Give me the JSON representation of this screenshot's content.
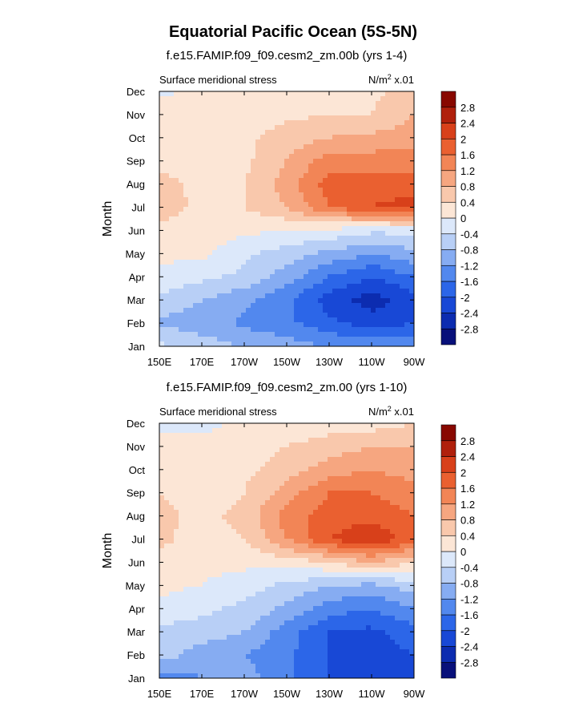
{
  "figure": {
    "title": "Equatorial Pacific Ocean (5S-5N)"
  },
  "colors": {
    "levels_palette": [
      "#08107a",
      "#0c2cb0",
      "#1848d6",
      "#2c66e8",
      "#5288ee",
      "#86acf2",
      "#b8cff6",
      "#dce8fa",
      "#fce6d6",
      "#f9c8ac",
      "#f6a680",
      "#f28556",
      "#ea6030",
      "#d8401a",
      "#b0200c",
      "#880800"
    ],
    "ocean_bg": "#fdefe4"
  },
  "chart_data": [
    {
      "type": "heatmap",
      "title": "f.e15.FAMIP.f09_f09.cesm2_zm.00b (yrs 1-4)",
      "subtitle_left": "Surface meridional stress",
      "units_prefix": "N/m",
      "units_sup": "2",
      "units_suffix": " x.01",
      "ylabel": "Month",
      "x": [
        "150E",
        "170E",
        "170W",
        "150W",
        "130W",
        "110W",
        "90W"
      ],
      "x_degrees_east": [
        150,
        170,
        190,
        210,
        230,
        250,
        270
      ],
      "y": [
        "Jan",
        "Feb",
        "Mar",
        "Apr",
        "May",
        "Jun",
        "Jul",
        "Aug",
        "Sep",
        "Oct",
        "Nov",
        "Dec"
      ],
      "values": [
        [
          -0.3,
          -0.6,
          -0.8,
          -1.0,
          -1.2,
          -1.3,
          -1.2
        ],
        [
          -0.9,
          -1.0,
          -1.3,
          -1.5,
          -1.9,
          -2.2,
          -2.0
        ],
        [
          -0.5,
          -0.8,
          -1.1,
          -1.5,
          -2.2,
          -2.6,
          -2.2
        ],
        [
          -0.1,
          -0.3,
          -0.5,
          -1.0,
          -1.6,
          -2.0,
          -1.6
        ],
        [
          0.1,
          0.1,
          -0.3,
          -0.6,
          -0.9,
          -1.2,
          -0.9
        ],
        [
          0.3,
          0.2,
          0.1,
          0.0,
          -0.1,
          -0.3,
          -0.3
        ],
        [
          0.6,
          0.3,
          0.4,
          0.8,
          1.6,
          2.0,
          2.2
        ],
        [
          0.5,
          0.3,
          0.4,
          1.0,
          1.8,
          1.8,
          1.8
        ],
        [
          0.3,
          0.3,
          0.3,
          0.8,
          1.4,
          1.4,
          1.4
        ],
        [
          0.2,
          0.2,
          0.3,
          0.6,
          0.8,
          0.9,
          1.0
        ],
        [
          0.2,
          0.2,
          0.2,
          0.3,
          0.4,
          0.4,
          0.8
        ],
        [
          -0.1,
          0.1,
          0.1,
          0.1,
          0.2,
          0.3,
          0.6
        ]
      ],
      "levels": [
        -2.8,
        -2.4,
        -2,
        -1.6,
        -1.2,
        -0.8,
        -0.4,
        0,
        0.4,
        0.8,
        1.2,
        1.6,
        2,
        2.4,
        2.8
      ]
    },
    {
      "type": "heatmap",
      "title": "f.e15.FAMIP.f09_f09.cesm2_zm.00 (yrs 1-10)",
      "subtitle_left": "Surface meridional stress",
      "units_prefix": "N/m",
      "units_sup": "2",
      "units_suffix": " x.01",
      "ylabel": "Month",
      "x": [
        "150E",
        "170E",
        "170W",
        "150W",
        "130W",
        "110W",
        "90W"
      ],
      "x_degrees_east": [
        150,
        170,
        190,
        210,
        230,
        250,
        270
      ],
      "y": [
        "Jan",
        "Feb",
        "Mar",
        "Apr",
        "May",
        "Jun",
        "Jul",
        "Aug",
        "Sep",
        "Oct",
        "Nov",
        "Dec"
      ],
      "values": [
        [
          -1.4,
          -1.2,
          -1.0,
          -1.5,
          -2.0,
          -2.3,
          -2.2
        ],
        [
          -0.6,
          -1.0,
          -1.2,
          -1.5,
          -2.0,
          -2.2,
          -2.0
        ],
        [
          -0.5,
          -0.6,
          -0.8,
          -1.4,
          -2.0,
          -2.1,
          -1.8
        ],
        [
          -0.1,
          -0.3,
          -0.5,
          -0.9,
          -1.4,
          -1.6,
          -1.2
        ],
        [
          0.1,
          0.0,
          -0.2,
          -0.5,
          -0.8,
          -0.9,
          -0.6
        ],
        [
          0.3,
          0.1,
          0.1,
          0.2,
          0.4,
          0.8,
          0.4
        ],
        [
          0.5,
          0.2,
          0.4,
          1.2,
          2.0,
          2.4,
          1.8
        ],
        [
          0.5,
          0.3,
          0.5,
          1.4,
          1.8,
          1.8,
          1.6
        ],
        [
          0.4,
          0.2,
          0.4,
          1.0,
          1.6,
          1.6,
          1.4
        ],
        [
          0.3,
          0.2,
          0.3,
          0.6,
          1.0,
          1.2,
          1.0
        ],
        [
          0.2,
          0.1,
          0.2,
          0.4,
          0.6,
          0.8,
          0.8
        ],
        [
          -0.2,
          -0.1,
          0.1,
          0.1,
          0.2,
          0.2,
          0.4
        ]
      ],
      "levels": [
        -2.8,
        -2.4,
        -2,
        -1.6,
        -1.2,
        -0.8,
        -0.4,
        0,
        0.4,
        0.8,
        1.2,
        1.6,
        2,
        2.4,
        2.8
      ]
    }
  ]
}
